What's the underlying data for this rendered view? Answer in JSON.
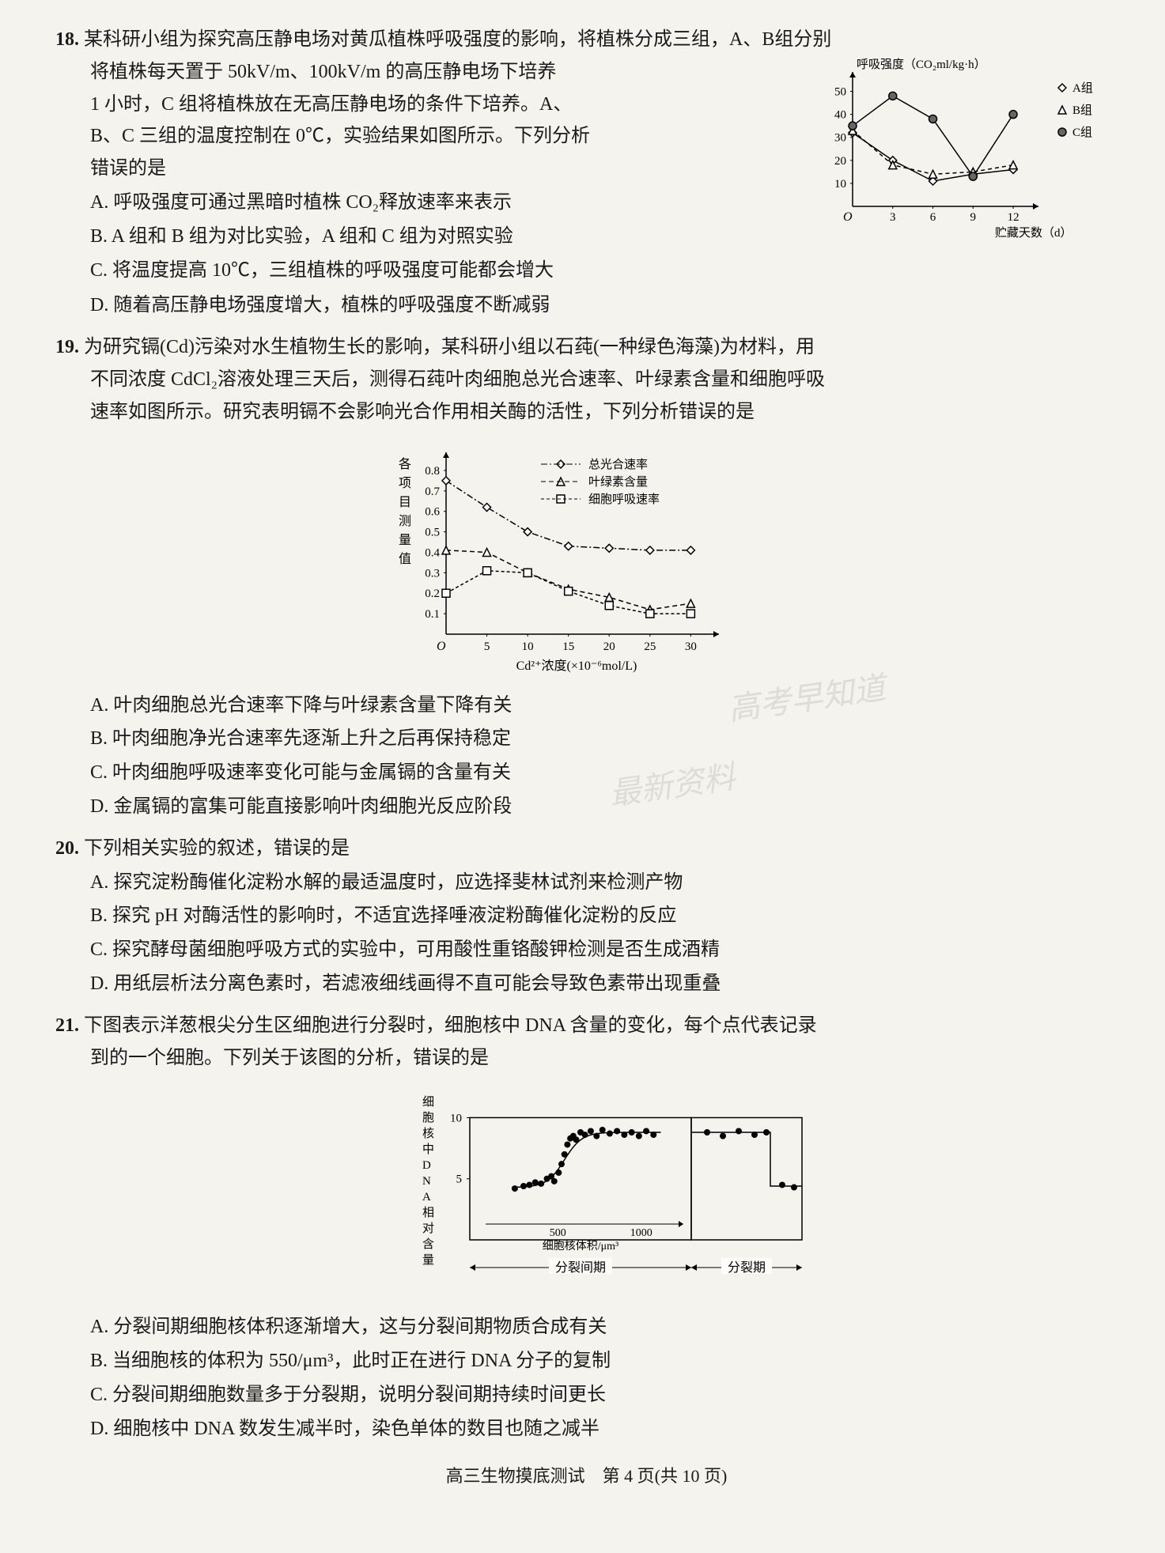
{
  "q18": {
    "num": "18.",
    "stem1": "某科研小组为探究高压静电场对黄瓜植株呼吸强度的影响，将植株分成三组，A、B组分别",
    "stem2": "将植株每天置于 50kV/m、100kV/m 的高压静电场下培养",
    "stem3": "1 小时，C 组将植株放在无高压静电场的条件下培养。A、",
    "stem4": "B、C 三组的温度控制在 0℃，实验结果如图所示。下列分析",
    "stem5": "错误的是",
    "optA": "A. 呼吸强度可通过黑暗时植株 CO₂释放速率来表示",
    "optB": "B. A 组和 B 组为对比实验，A 组和 C 组为对照实验",
    "optC": "C. 将温度提高 10℃，三组植株的呼吸强度可能都会增大",
    "optD": "D. 随着高压静电场强度增大，植株的呼吸强度不断减弱",
    "chart": {
      "ylabel": "呼吸强度（CO₂ml/kg·h）",
      "xlabel": "贮藏天数（d）",
      "yticks": [
        10,
        20,
        30,
        40,
        50
      ],
      "xticks": [
        3,
        6,
        9,
        12
      ],
      "legend": [
        "A组",
        "B组",
        "C组"
      ],
      "markers": [
        "diamond",
        "triangle",
        "circle"
      ],
      "series": {
        "A": [
          [
            0,
            32
          ],
          [
            3,
            20
          ],
          [
            6,
            11
          ],
          [
            9,
            14
          ],
          [
            12,
            16
          ]
        ],
        "B": [
          [
            0,
            33
          ],
          [
            3,
            18
          ],
          [
            6,
            14
          ],
          [
            9,
            15
          ],
          [
            12,
            18
          ]
        ],
        "C": [
          [
            0,
            35
          ],
          [
            3,
            48
          ],
          [
            6,
            38
          ],
          [
            9,
            13
          ],
          [
            12,
            40
          ]
        ]
      },
      "colors": {
        "axis": "#000",
        "A": "#000",
        "B": "#000",
        "C": "#000",
        "bg": "#fdfcf9"
      }
    }
  },
  "q19": {
    "num": "19.",
    "stem1": "为研究镉(Cd)污染对水生植物生长的影响，某科研小组以石莼(一种绿色海藻)为材料，用",
    "stem2": "不同浓度 CdCl₂溶液处理三天后，测得石莼叶肉细胞总光合速率、叶绿素含量和细胞呼吸",
    "stem3": "速率如图所示。研究表明镉不会影响光合作用相关酶的活性，下列分析错误的是",
    "optA": "A. 叶肉细胞总光合速率下降与叶绿素含量下降有关",
    "optB": "B. 叶肉细胞净光合速率先逐渐上升之后再保持稳定",
    "optC": "C. 叶肉细胞呼吸速率变化可能与金属镉的含量有关",
    "optD": "D. 金属镉的富集可能直接影响叶肉细胞光反应阶段",
    "chart": {
      "ylabel": "各项目测量值",
      "xlabel": "Cd²⁺浓度(×10⁻⁶mol/L)",
      "yticks": [
        0.1,
        0.2,
        0.3,
        0.4,
        0.5,
        0.6,
        0.7,
        0.8
      ],
      "xticks": [
        5,
        10,
        15,
        20,
        25,
        30
      ],
      "legend": [
        "总光合速率",
        "叶绿素含量",
        "细胞呼吸速率"
      ],
      "markers": [
        "diamond",
        "triangle",
        "square"
      ],
      "series": {
        "total": [
          [
            0,
            0.75
          ],
          [
            5,
            0.62
          ],
          [
            10,
            0.5
          ],
          [
            15,
            0.43
          ],
          [
            20,
            0.42
          ],
          [
            25,
            0.41
          ],
          [
            30,
            0.41
          ]
        ],
        "chl": [
          [
            0,
            0.41
          ],
          [
            5,
            0.4
          ],
          [
            10,
            0.3
          ],
          [
            15,
            0.22
          ],
          [
            20,
            0.18
          ],
          [
            25,
            0.12
          ],
          [
            30,
            0.15
          ]
        ],
        "resp": [
          [
            0,
            0.2
          ],
          [
            5,
            0.31
          ],
          [
            10,
            0.3
          ],
          [
            15,
            0.21
          ],
          [
            20,
            0.14
          ],
          [
            25,
            0.1
          ],
          [
            30,
            0.1
          ]
        ]
      },
      "colors": {
        "axis": "#000",
        "bg": "#fdfcf9"
      }
    }
  },
  "q20": {
    "num": "20.",
    "stem": "下列相关实验的叙述，错误的是",
    "optA": "A. 探究淀粉酶催化淀粉水解的最适温度时，应选择斐林试剂来检测产物",
    "optB": "B. 探究 pH 对酶活性的影响时，不适宜选择唾液淀粉酶催化淀粉的反应",
    "optC": "C. 探究酵母菌细胞呼吸方式的实验中，可用酸性重铬酸钾检测是否生成酒精",
    "optD": "D. 用纸层析法分离色素时，若滤液细线画得不直可能会导致色素带出现重叠"
  },
  "q21": {
    "num": "21.",
    "stem1": "下图表示洋葱根尖分生区细胞进行分裂时，细胞核中 DNA 含量的变化，每个点代表记录",
    "stem2": "到的一个细胞。下列关于该图的分析，错误的是",
    "optA": "A. 分裂间期细胞核体积逐渐增大，这与分裂间期物质合成有关",
    "optB": "B. 当细胞核的体积为 550/μm³，此时正在进行 DNA 分子的复制",
    "optC": "C. 分裂间期细胞数量多于分裂期，说明分裂间期持续时间更长",
    "optD": "D. 细胞核中 DNA 数发生减半时，染色单体的数目也随之减半",
    "chart": {
      "ylabel": "细胞核中DNA相对含量",
      "xlabel": "细胞核体积/μm³",
      "yticks": [
        5,
        10
      ],
      "xticks": [
        500,
        1000
      ],
      "phase1": "分裂间期",
      "phase2": "分裂期",
      "colors": {
        "axis": "#000",
        "bg": "#fdfcf9",
        "dot": "#000"
      }
    }
  },
  "footer": "高三生物摸底测试　第 4 页(共 10 页)",
  "watermark1": "高考早知道",
  "watermark2": "最新资料"
}
